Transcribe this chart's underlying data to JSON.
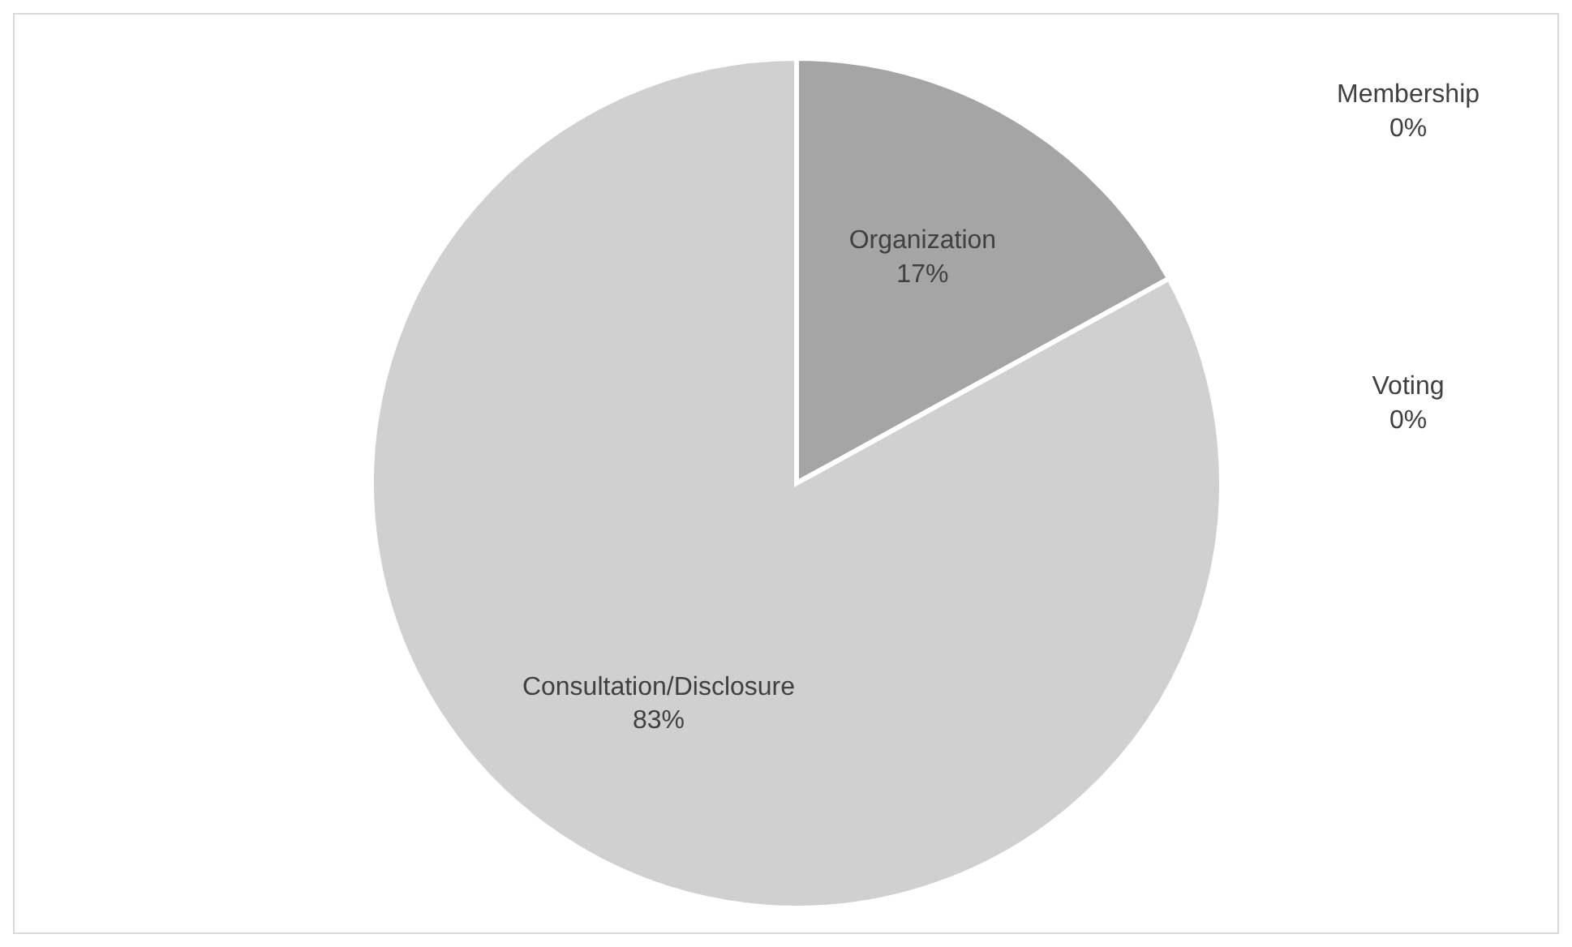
{
  "chart_data": {
    "type": "pie",
    "categories": [
      "Membership",
      "Organization",
      "Voting",
      "Consultation/Disclosure"
    ],
    "values": [
      0,
      17,
      0,
      83
    ],
    "value_labels": [
      "0%",
      "17%",
      "0%",
      "83%"
    ],
    "colors": [
      "#7f7f7f",
      "#a5a5a5",
      "#bfbfbf",
      "#d0d0d0"
    ]
  }
}
